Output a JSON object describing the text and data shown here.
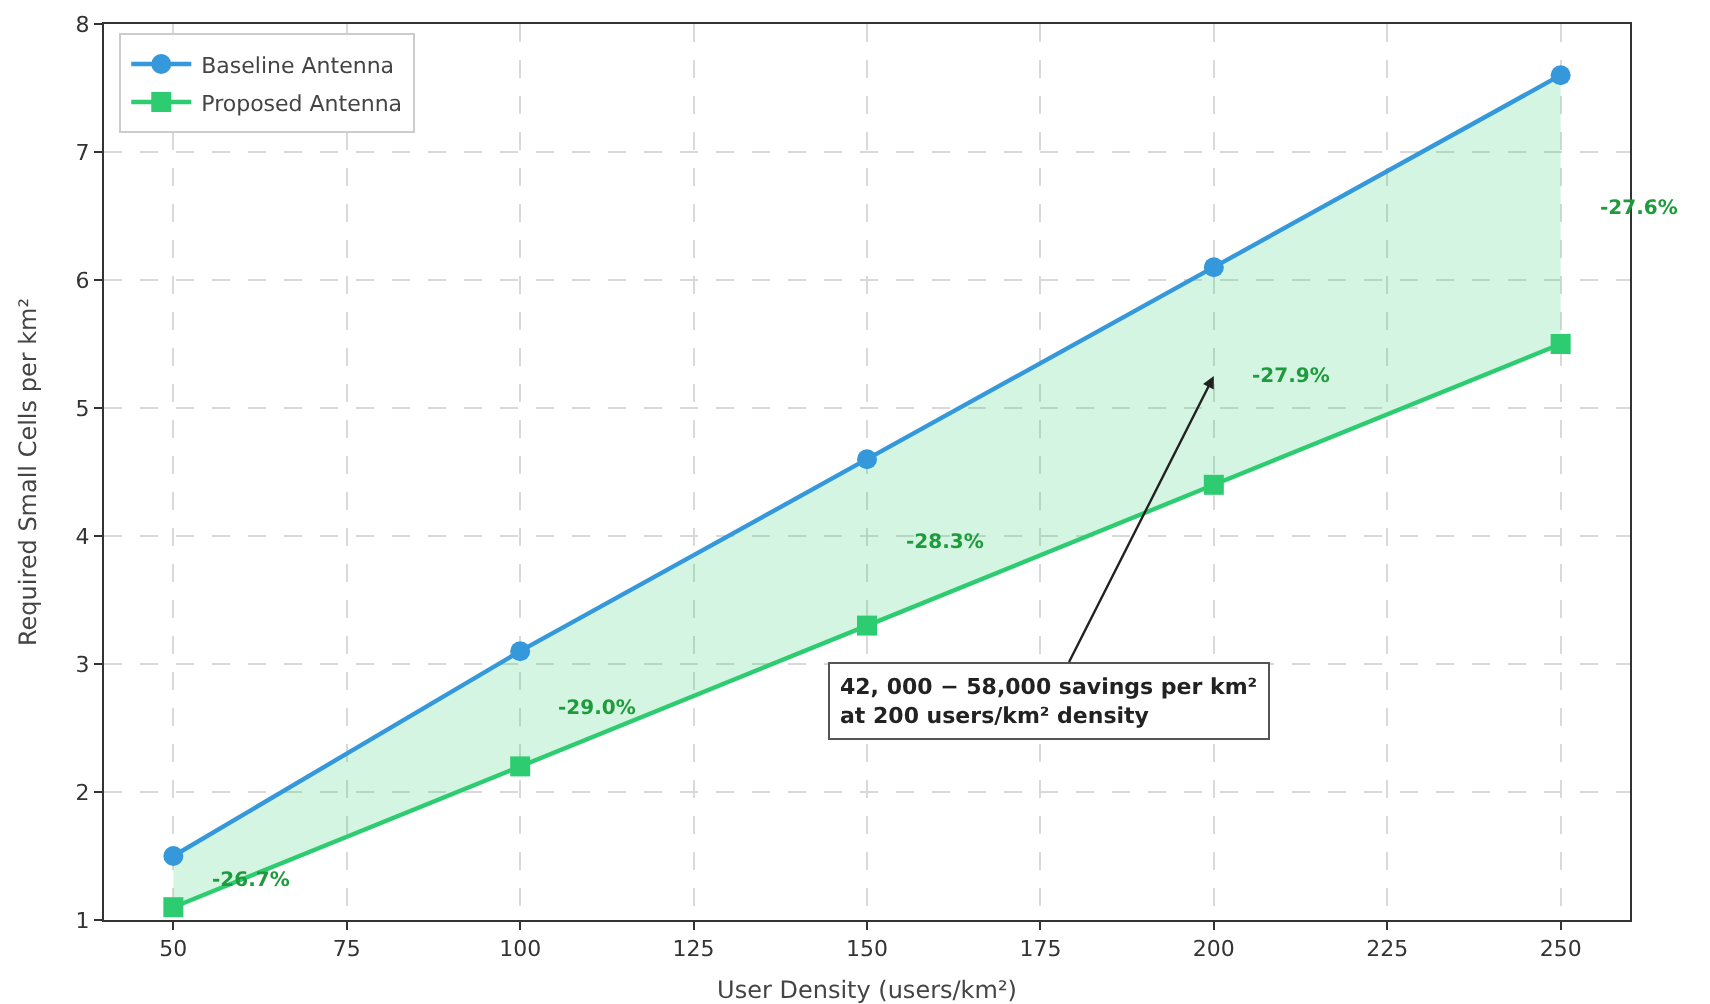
{
  "chart_data": {
    "type": "line",
    "xlabel": "User Density (users/km²)",
    "ylabel": "Required Small Cells per km²",
    "x": [
      50,
      100,
      150,
      200,
      250
    ],
    "series": [
      {
        "name": "Baseline Antenna",
        "color": "#3498db",
        "marker": "circle",
        "values": [
          1.5,
          3.1,
          4.6,
          6.1,
          7.6
        ]
      },
      {
        "name": "Proposed Antenna",
        "color": "#2ecc71",
        "marker": "square",
        "values": [
          1.1,
          2.2,
          3.3,
          4.4,
          5.5
        ],
        "lower": [
          1.1,
          2.2,
          3.3,
          4.4,
          5.5
        ],
        "upper": [
          1.5,
          3.1,
          4.6,
          6.1,
          7.6
        ]
      }
    ],
    "annotations": [
      "-26.7%",
      "-29.0%",
      "-28.3%",
      "-27.9%",
      "-27.6%",
      "42, 000 − 58,000 savings per km²\nat 200 users/km² density"
    ],
    "xlim": [
      40,
      260
    ],
    "xticks": [
      50,
      75,
      100,
      125,
      150,
      175,
      200,
      225,
      250
    ],
    "ylim": [
      1,
      8
    ],
    "yticks": [
      1,
      2,
      3,
      4,
      5,
      6,
      7,
      8
    ],
    "grid": true,
    "legend": "top left",
    "line_style": "solid"
  }
}
